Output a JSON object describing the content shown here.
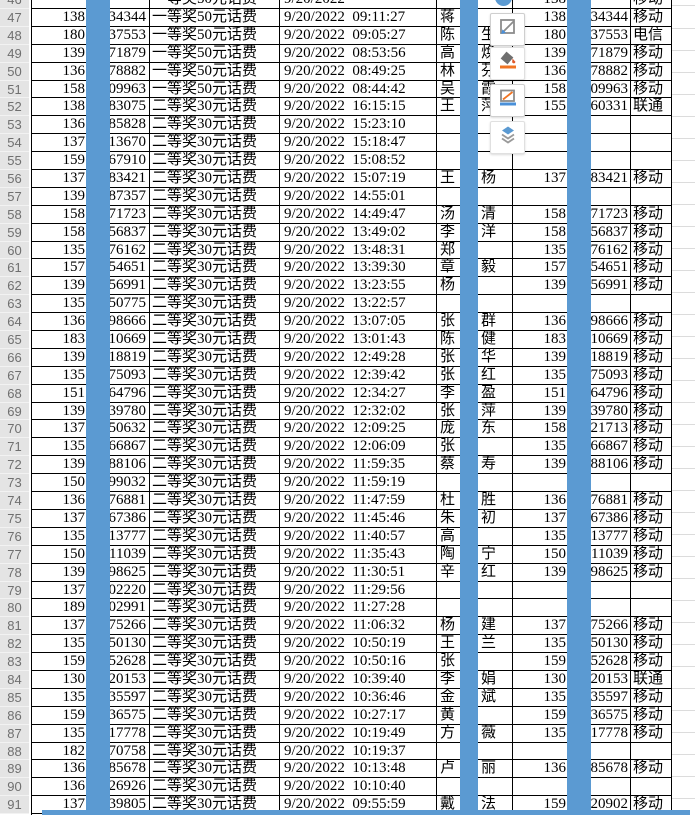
{
  "colors": {
    "censor_bar": "#5b9ad2",
    "grid_line": "#000000",
    "row_header_bg": "#e4e4e4",
    "toolbar_accent_orange": "#f07423",
    "toolbar_accent_blue": "#4a90d9"
  },
  "float_toolbar": {
    "icons": [
      "style-pen-icon",
      "fill-color-icon",
      "border-color-icon",
      "layers-icon"
    ]
  },
  "table": {
    "rows": [
      {
        "n": "46",
        "p1": "",
        "s1": "",
        "prize": "一等奖50元话费",
        "dt": "9/20/2022",
        "nl": "",
        "nr": "",
        "p2": "138",
        "s2": "",
        "car": "移动",
        "partial": true
      },
      {
        "n": "47",
        "p1": "138",
        "s1": "34344",
        "prize": "一等奖50元话费",
        "dt": "9/20/2022  09:11:27",
        "nl": "蒋",
        "nr": "",
        "p2": "138",
        "s2": "34344",
        "car": "移动"
      },
      {
        "n": "48",
        "p1": "180",
        "s1": "37553",
        "prize": "一等奖50元话费",
        "dt": "9/20/2022  09:05:27",
        "nl": "陈",
        "nr": "生",
        "p2": "180",
        "s2": "37553",
        "car": "电信"
      },
      {
        "n": "49",
        "p1": "139",
        "s1": "71879",
        "prize": "一等奖50元话费",
        "dt": "9/20/2022  08:53:56",
        "nl": "高",
        "nr": "焕",
        "p2": "139",
        "s2": "71879",
        "car": "移动"
      },
      {
        "n": "50",
        "p1": "136",
        "s1": "78882",
        "prize": "一等奖50元话费",
        "dt": "9/20/2022  08:49:25",
        "nl": "林",
        "nr": "芬",
        "p2": "136",
        "s2": "78882",
        "car": "移动"
      },
      {
        "n": "51",
        "p1": "158",
        "s1": "09963",
        "prize": "一等奖50元话费",
        "dt": "9/20/2022  08:44:42",
        "nl": "吴",
        "nr": "霞",
        "p2": "158",
        "s2": "09963",
        "car": "移动"
      },
      {
        "n": "52",
        "p1": "138",
        "s1": "83075",
        "prize": "二等奖30元话费",
        "dt": "9/20/2022  16:15:15",
        "nl": "王",
        "nr": "萍",
        "p2": "155",
        "s2": "60331",
        "car": "联通"
      },
      {
        "n": "53",
        "p1": "136",
        "s1": "85828",
        "prize": "二等奖30元话费",
        "dt": "9/20/2022  15:23:10",
        "nl": "",
        "nr": "",
        "p2": "",
        "s2": "",
        "car": ""
      },
      {
        "n": "54",
        "p1": "137",
        "s1": "13670",
        "prize": "二等奖30元话费",
        "dt": "9/20/2022  15:18:47",
        "nl": "",
        "nr": "",
        "p2": "",
        "s2": "",
        "car": ""
      },
      {
        "n": "55",
        "p1": "159",
        "s1": "67910",
        "prize": "二等奖30元话费",
        "dt": "9/20/2022  15:08:52",
        "nl": "",
        "nr": "",
        "p2": "",
        "s2": "",
        "car": ""
      },
      {
        "n": "56",
        "p1": "137",
        "s1": "83421",
        "prize": "二等奖30元话费",
        "dt": "9/20/2022  15:07:19",
        "nl": "王",
        "nr": "杨",
        "p2": "137",
        "s2": "83421",
        "car": "移动"
      },
      {
        "n": "57",
        "p1": "139",
        "s1": "87357",
        "prize": "二等奖30元话费",
        "dt": "9/20/2022  14:55:01",
        "nl": "",
        "nr": "",
        "p2": "",
        "s2": "",
        "car": ""
      },
      {
        "n": "58",
        "p1": "158",
        "s1": "71723",
        "prize": "二等奖30元话费",
        "dt": "9/20/2022  14:49:47",
        "nl": "汤",
        "nr": "清",
        "p2": "158",
        "s2": "71723",
        "car": "移动"
      },
      {
        "n": "59",
        "p1": "158",
        "s1": "56837",
        "prize": "二等奖30元话费",
        "dt": "9/20/2022  13:49:02",
        "nl": "李",
        "nr": "洋",
        "p2": "158",
        "s2": "56837",
        "car": "移动"
      },
      {
        "n": "60",
        "p1": "135",
        "s1": "76162",
        "prize": "二等奖30元话费",
        "dt": "9/20/2022  13:48:31",
        "nl": "郑",
        "nr": "",
        "p2": "135",
        "s2": "76162",
        "car": "移动"
      },
      {
        "n": "61",
        "p1": "157",
        "s1": "54651",
        "prize": "二等奖30元话费",
        "dt": "9/20/2022  13:39:30",
        "nl": "章",
        "nr": "毅",
        "p2": "157",
        "s2": "54651",
        "car": "移动"
      },
      {
        "n": "62",
        "p1": "139",
        "s1": "56991",
        "prize": "二等奖30元话费",
        "dt": "9/20/2022  13:23:55",
        "nl": "杨",
        "nr": "",
        "p2": "139",
        "s2": "56991",
        "car": "移动"
      },
      {
        "n": "63",
        "p1": "135",
        "s1": "50775",
        "prize": "二等奖30元话费",
        "dt": "9/20/2022  13:22:57",
        "nl": "",
        "nr": "",
        "p2": "",
        "s2": "",
        "car": ""
      },
      {
        "n": "64",
        "p1": "136",
        "s1": "98666",
        "prize": "二等奖30元话费",
        "dt": "9/20/2022  13:07:05",
        "nl": "张",
        "nr": "群",
        "p2": "136",
        "s2": "98666",
        "car": "移动"
      },
      {
        "n": "65",
        "p1": "183",
        "s1": "10669",
        "prize": "二等奖30元话费",
        "dt": "9/20/2022  13:01:43",
        "nl": "陈",
        "nr": "健",
        "p2": "183",
        "s2": "10669",
        "car": "移动"
      },
      {
        "n": "66",
        "p1": "139",
        "s1": "18819",
        "prize": "二等奖30元话费",
        "dt": "9/20/2022  12:49:28",
        "nl": "张",
        "nr": "华",
        "p2": "139",
        "s2": "18819",
        "car": "移动"
      },
      {
        "n": "67",
        "p1": "135",
        "s1": "75093",
        "prize": "二等奖30元话费",
        "dt": "9/20/2022  12:39:42",
        "nl": "张",
        "nr": "红",
        "p2": "135",
        "s2": "75093",
        "car": "移动"
      },
      {
        "n": "68",
        "p1": "151",
        "s1": "64796",
        "prize": "二等奖30元话费",
        "dt": "9/20/2022  12:34:27",
        "nl": "李",
        "nr": "盈",
        "p2": "151",
        "s2": "64796",
        "car": "移动"
      },
      {
        "n": "69",
        "p1": "139",
        "s1": "39780",
        "prize": "二等奖30元话费",
        "dt": "9/20/2022  12:32:02",
        "nl": "张",
        "nr": "萍",
        "p2": "139",
        "s2": "39780",
        "car": "移动"
      },
      {
        "n": "70",
        "p1": "137",
        "s1": "50632",
        "prize": "二等奖30元话费",
        "dt": "9/20/2022  12:09:25",
        "nl": "庞",
        "nr": "东",
        "p2": "158",
        "s2": "21713",
        "car": "移动"
      },
      {
        "n": "71",
        "p1": "135",
        "s1": "66867",
        "prize": "二等奖30元话费",
        "dt": "9/20/2022  12:06:09",
        "nl": "张",
        "nr": "",
        "p2": "135",
        "s2": "66867",
        "car": "移动"
      },
      {
        "n": "72",
        "p1": "139",
        "s1": "88106",
        "prize": "二等奖30元话费",
        "dt": "9/20/2022  11:59:35",
        "nl": "蔡",
        "nr": "寿",
        "p2": "139",
        "s2": "88106",
        "car": "移动"
      },
      {
        "n": "73",
        "p1": "150",
        "s1": "99032",
        "prize": "二等奖30元话费",
        "dt": "9/20/2022  11:59:19",
        "nl": "",
        "nr": "",
        "p2": "",
        "s2": "",
        "car": ""
      },
      {
        "n": "74",
        "p1": "136",
        "s1": "76881",
        "prize": "二等奖30元话费",
        "dt": "9/20/2022  11:47:59",
        "nl": "杜",
        "nr": "胜",
        "p2": "136",
        "s2": "76881",
        "car": "移动"
      },
      {
        "n": "75",
        "p1": "137",
        "s1": "67386",
        "prize": "二等奖30元话费",
        "dt": "9/20/2022  11:45:46",
        "nl": "朱",
        "nr": "初",
        "p2": "137",
        "s2": "67386",
        "car": "移动"
      },
      {
        "n": "76",
        "p1": "135",
        "s1": "13777",
        "prize": "二等奖30元话费",
        "dt": "9/20/2022  11:40:57",
        "nl": "高",
        "nr": "",
        "p2": "135",
        "s2": "13777",
        "car": "移动"
      },
      {
        "n": "77",
        "p1": "150",
        "s1": "11039",
        "prize": "二等奖30元话费",
        "dt": "9/20/2022  11:35:43",
        "nl": "陶",
        "nr": "宁",
        "p2": "150",
        "s2": "11039",
        "car": "移动"
      },
      {
        "n": "78",
        "p1": "139",
        "s1": "98625",
        "prize": "二等奖30元话费",
        "dt": "9/20/2022  11:30:51",
        "nl": "辛",
        "nr": "红",
        "p2": "139",
        "s2": "98625",
        "car": "移动"
      },
      {
        "n": "79",
        "p1": "137",
        "s1": "02220",
        "prize": "二等奖30元话费",
        "dt": "9/20/2022  11:29:56",
        "nl": "",
        "nr": "",
        "p2": "",
        "s2": "",
        "car": ""
      },
      {
        "n": "80",
        "p1": "189",
        "s1": "02991",
        "prize": "二等奖30元话费",
        "dt": "9/20/2022  11:27:28",
        "nl": "",
        "nr": "",
        "p2": "",
        "s2": "",
        "car": ""
      },
      {
        "n": "81",
        "p1": "137",
        "s1": "75266",
        "prize": "二等奖30元话费",
        "dt": "9/20/2022  11:06:32",
        "nl": "杨",
        "nr": "建",
        "p2": "137",
        "s2": "75266",
        "car": "移动"
      },
      {
        "n": "82",
        "p1": "135",
        "s1": "50130",
        "prize": "二等奖30元话费",
        "dt": "9/20/2022  10:50:19",
        "nl": "王",
        "nr": "兰",
        "p2": "135",
        "s2": "50130",
        "car": "移动"
      },
      {
        "n": "83",
        "p1": "159",
        "s1": "52628",
        "prize": "二等奖30元话费",
        "dt": "9/20/2022  10:50:16",
        "nl": "张",
        "nr": "",
        "p2": "159",
        "s2": "52628",
        "car": "移动"
      },
      {
        "n": "84",
        "p1": "130",
        "s1": "20153",
        "prize": "二等奖30元话费",
        "dt": "9/20/2022  10:39:40",
        "nl": "李",
        "nr": "娟",
        "p2": "130",
        "s2": "20153",
        "car": "联通"
      },
      {
        "n": "85",
        "p1": "135",
        "s1": "35597",
        "prize": "二等奖30元话费",
        "dt": "9/20/2022  10:36:46",
        "nl": "金",
        "nr": "斌",
        "p2": "135",
        "s2": "35597",
        "car": "移动"
      },
      {
        "n": "86",
        "p1": "159",
        "s1": "36575",
        "prize": "二等奖30元话费",
        "dt": "9/20/2022  10:27:17",
        "nl": "黄",
        "nr": "",
        "p2": "159",
        "s2": "36575",
        "car": "移动"
      },
      {
        "n": "87",
        "p1": "135",
        "s1": "17778",
        "prize": "二等奖30元话费",
        "dt": "9/20/2022  10:19:49",
        "nl": "方",
        "nr": "薇",
        "p2": "135",
        "s2": "17778",
        "car": "移动"
      },
      {
        "n": "88",
        "p1": "182",
        "s1": "70758",
        "prize": "二等奖30元话费",
        "dt": "9/20/2022  10:19:37",
        "nl": "",
        "nr": "",
        "p2": "",
        "s2": "",
        "car": ""
      },
      {
        "n": "89",
        "p1": "136",
        "s1": "85678",
        "prize": "二等奖30元话费",
        "dt": "9/20/2022  10:13:48",
        "nl": "卢",
        "nr": "丽",
        "p2": "136",
        "s2": "85678",
        "car": "移动"
      },
      {
        "n": "90",
        "p1": "136",
        "s1": "26926",
        "prize": "二等奖30元话费",
        "dt": "9/20/2022  10:10:40",
        "nl": "",
        "nr": "",
        "p2": "",
        "s2": "",
        "car": ""
      },
      {
        "n": "91",
        "p1": "137",
        "s1": "39805",
        "prize": "二等奖30元话费",
        "dt": "9/20/2022  09:55:59",
        "nl": "戴",
        "nr": "法",
        "p2": "159",
        "s2": "20902",
        "car": "移动"
      }
    ]
  }
}
